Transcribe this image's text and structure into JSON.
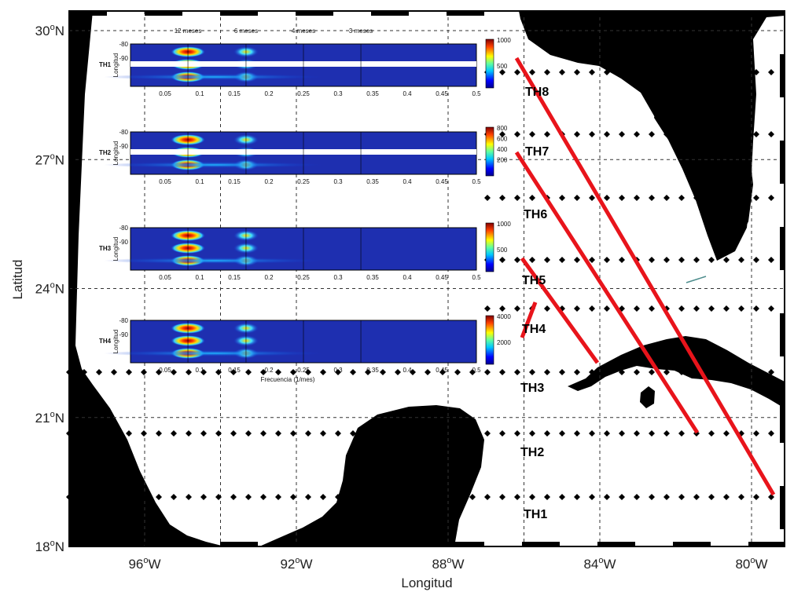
{
  "map": {
    "xlabel": "Longitud",
    "ylabel": "Latitud",
    "lon_ticks": [
      "96",
      "92",
      "88",
      "84",
      "80"
    ],
    "lat_ticks": [
      "30",
      "27",
      "24",
      "21",
      "18"
    ],
    "lon_hemisphere": "W",
    "lat_hemisphere": "N",
    "degree_sign": "o",
    "transect_color": "#e8141b",
    "transect_labels": [
      "TH8",
      "TH7",
      "TH6",
      "TH5",
      "TH4",
      "TH3",
      "TH2",
      "TH1"
    ],
    "land_color": "#000000"
  },
  "panels": {
    "period_labels": [
      "12 meses",
      "6 meses",
      "4 meses",
      "3 meses"
    ],
    "y_axis_label": "Longitud",
    "y_ticks": [
      "-80",
      "-90"
    ],
    "freq_ticks": [
      "0.05",
      "0.1",
      "0.15",
      "0.2",
      "0.25",
      "0.3",
      "0.35",
      "0.4",
      "0.45",
      "0.5"
    ],
    "freq_label": "Frecuencia (1/mes)",
    "items": [
      {
        "name": "TH1",
        "cbar": [
          "1000",
          "500"
        ]
      },
      {
        "name": "TH2",
        "cbar": [
          "800",
          "600",
          "400",
          "200"
        ]
      },
      {
        "name": "TH3",
        "cbar": [
          "1000",
          "500"
        ]
      },
      {
        "name": "TH4",
        "cbar": [
          "4000",
          "2000"
        ]
      }
    ]
  }
}
